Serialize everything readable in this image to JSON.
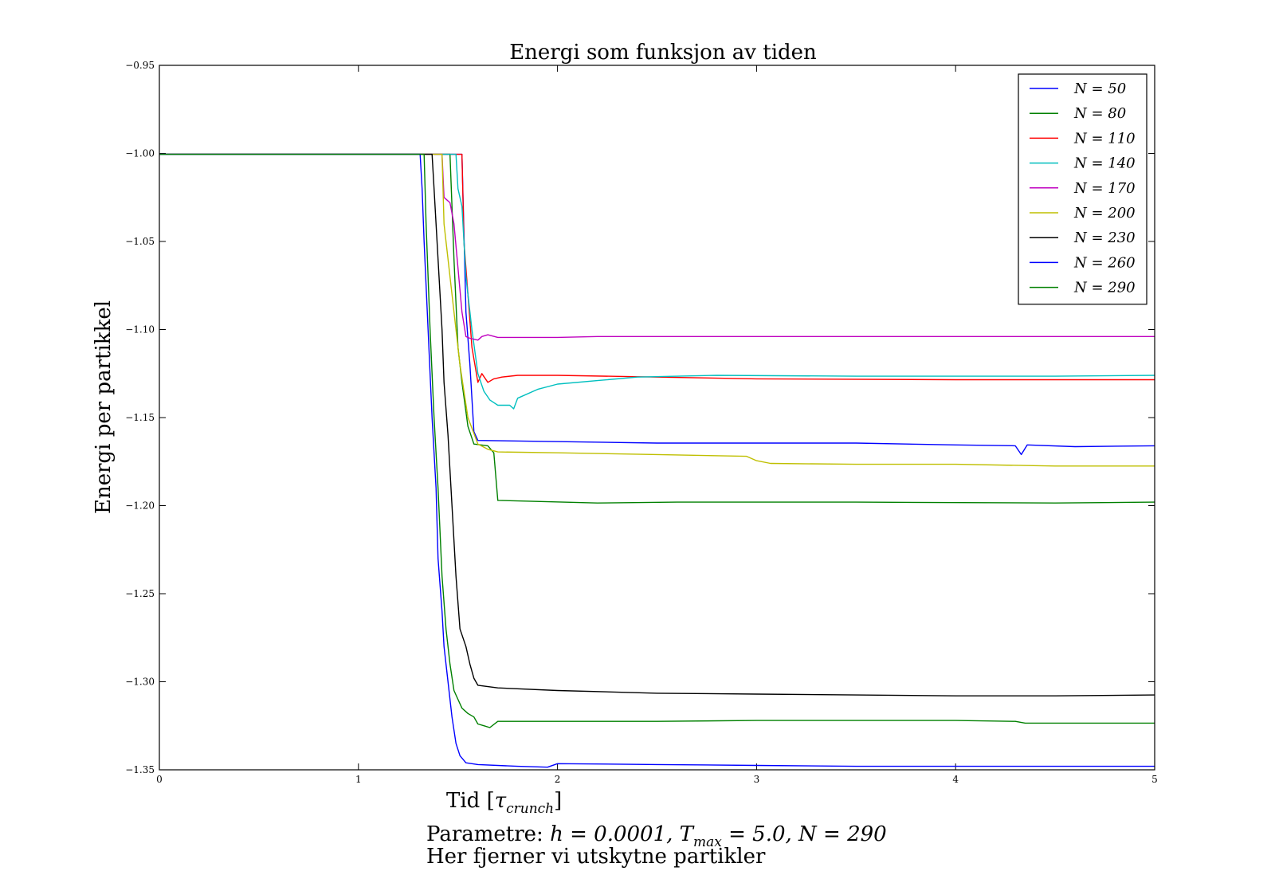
{
  "chart_data": {
    "type": "line",
    "title": "Energi som funksjon av tiden",
    "xlabel": "Tid [τ_crunch]",
    "xlabel_main": "Tid [",
    "xlabel_tau": "τ",
    "xlabel_sub": "crunch",
    "xlabel_close": "]",
    "ylabel": "Energi per partikkel",
    "xlim": [
      0,
      5
    ],
    "ylim": [
      -1.35,
      -0.95
    ],
    "xticks": [
      0,
      1,
      2,
      3,
      4,
      5
    ],
    "xtick_labels": [
      "0",
      "1",
      "2",
      "3",
      "4",
      "5"
    ],
    "yticks": [
      -1.35,
      -1.3,
      -1.25,
      -1.2,
      -1.15,
      -1.1,
      -1.05,
      -1.0,
      -0.95
    ],
    "ytick_labels": [
      "−1.35",
      "−1.30",
      "−1.25",
      "−1.20",
      "−1.15",
      "−1.10",
      "−1.05",
      "−1.00",
      "−0.95"
    ],
    "grid": false,
    "legend_position": "top-right",
    "series": [
      {
        "name": "N = 50",
        "color": "#0000ff",
        "points": [
          [
            0,
            -1.0005
          ],
          [
            1.52,
            -1.0005
          ],
          [
            1.54,
            -1.09
          ],
          [
            1.56,
            -1.12
          ],
          [
            1.58,
            -1.158
          ],
          [
            1.6,
            -1.163
          ],
          [
            2.5,
            -1.1645
          ],
          [
            3.5,
            -1.1645
          ],
          [
            4.0,
            -1.1655
          ],
          [
            4.3,
            -1.166
          ],
          [
            4.33,
            -1.171
          ],
          [
            4.36,
            -1.1655
          ],
          [
            4.6,
            -1.1665
          ],
          [
            5,
            -1.166
          ]
        ]
      },
      {
        "name": "N = 80",
        "color": "#008000",
        "points": [
          [
            0,
            -1.0005
          ],
          [
            1.46,
            -1.0005
          ],
          [
            1.48,
            -1.06
          ],
          [
            1.5,
            -1.11
          ],
          [
            1.52,
            -1.13
          ],
          [
            1.55,
            -1.155
          ],
          [
            1.58,
            -1.165
          ],
          [
            1.65,
            -1.166
          ],
          [
            1.68,
            -1.17
          ],
          [
            1.7,
            -1.197
          ],
          [
            2.2,
            -1.1985
          ],
          [
            2.6,
            -1.198
          ],
          [
            3.5,
            -1.198
          ],
          [
            4.5,
            -1.1985
          ],
          [
            5,
            -1.198
          ]
        ]
      },
      {
        "name": "N = 110",
        "color": "#ff0000",
        "points": [
          [
            0,
            -1.0005
          ],
          [
            1.52,
            -1.0005
          ],
          [
            1.53,
            -1.05
          ],
          [
            1.55,
            -1.08
          ],
          [
            1.57,
            -1.11
          ],
          [
            1.6,
            -1.13
          ],
          [
            1.62,
            -1.125
          ],
          [
            1.65,
            -1.13
          ],
          [
            1.68,
            -1.128
          ],
          [
            1.72,
            -1.127
          ],
          [
            1.8,
            -1.126
          ],
          [
            2.0,
            -1.126
          ],
          [
            2.5,
            -1.127
          ],
          [
            3.0,
            -1.128
          ],
          [
            4.0,
            -1.1285
          ],
          [
            5,
            -1.1285
          ]
        ]
      },
      {
        "name": "N = 140",
        "color": "#00bfbf",
        "points": [
          [
            0,
            -1.0005
          ],
          [
            1.49,
            -1.0005
          ],
          [
            1.5,
            -1.02
          ],
          [
            1.52,
            -1.03
          ],
          [
            1.54,
            -1.07
          ],
          [
            1.57,
            -1.1
          ],
          [
            1.6,
            -1.125
          ],
          [
            1.63,
            -1.135
          ],
          [
            1.66,
            -1.14
          ],
          [
            1.7,
            -1.143
          ],
          [
            1.76,
            -1.143
          ],
          [
            1.78,
            -1.145
          ],
          [
            1.8,
            -1.139
          ],
          [
            1.9,
            -1.134
          ],
          [
            2.0,
            -1.131
          ],
          [
            2.2,
            -1.129
          ],
          [
            2.4,
            -1.127
          ],
          [
            2.8,
            -1.126
          ],
          [
            3.5,
            -1.1265
          ],
          [
            4.5,
            -1.1265
          ],
          [
            5,
            -1.126
          ]
        ]
      },
      {
        "name": "N = 170",
        "color": "#bf00bf",
        "points": [
          [
            0,
            -1.0005
          ],
          [
            1.42,
            -1.0005
          ],
          [
            1.43,
            -1.025
          ],
          [
            1.46,
            -1.028
          ],
          [
            1.48,
            -1.04
          ],
          [
            1.5,
            -1.065
          ],
          [
            1.52,
            -1.09
          ],
          [
            1.54,
            -1.104
          ],
          [
            1.56,
            -1.105
          ],
          [
            1.6,
            -1.106
          ],
          [
            1.62,
            -1.104
          ],
          [
            1.65,
            -1.103
          ],
          [
            1.7,
            -1.1045
          ],
          [
            2.0,
            -1.1045
          ],
          [
            2.2,
            -1.104
          ],
          [
            2.8,
            -1.104
          ],
          [
            3.5,
            -1.104
          ],
          [
            5,
            -1.104
          ]
        ]
      },
      {
        "name": "N = 200",
        "color": "#bfbf00",
        "points": [
          [
            0,
            -1.0005
          ],
          [
            1.42,
            -1.0005
          ],
          [
            1.43,
            -1.04
          ],
          [
            1.45,
            -1.06
          ],
          [
            1.47,
            -1.08
          ],
          [
            1.49,
            -1.1
          ],
          [
            1.51,
            -1.12
          ],
          [
            1.53,
            -1.135
          ],
          [
            1.55,
            -1.15
          ],
          [
            1.6,
            -1.165
          ],
          [
            1.65,
            -1.168
          ],
          [
            1.7,
            -1.1695
          ],
          [
            2.0,
            -1.17
          ],
          [
            2.5,
            -1.171
          ],
          [
            2.95,
            -1.172
          ],
          [
            3.0,
            -1.1745
          ],
          [
            3.07,
            -1.176
          ],
          [
            3.5,
            -1.1765
          ],
          [
            4.0,
            -1.1765
          ],
          [
            4.5,
            -1.1775
          ],
          [
            5,
            -1.1775
          ]
        ]
      },
      {
        "name": "N = 230",
        "color": "#000000",
        "points": [
          [
            0,
            -1.0005
          ],
          [
            1.37,
            -1.0005
          ],
          [
            1.38,
            -1.02
          ],
          [
            1.4,
            -1.06
          ],
          [
            1.42,
            -1.1
          ],
          [
            1.43,
            -1.13
          ],
          [
            1.45,
            -1.16
          ],
          [
            1.47,
            -1.2
          ],
          [
            1.49,
            -1.24
          ],
          [
            1.51,
            -1.27
          ],
          [
            1.54,
            -1.28
          ],
          [
            1.56,
            -1.29
          ],
          [
            1.58,
            -1.298
          ],
          [
            1.6,
            -1.302
          ],
          [
            1.7,
            -1.3035
          ],
          [
            2.0,
            -1.305
          ],
          [
            2.5,
            -1.3065
          ],
          [
            3.0,
            -1.307
          ],
          [
            3.5,
            -1.3075
          ],
          [
            4.0,
            -1.308
          ],
          [
            4.5,
            -1.308
          ],
          [
            5,
            -1.3075
          ]
        ]
      },
      {
        "name": "N = 260",
        "color": "#0000ff",
        "points": [
          [
            0,
            -1.0005
          ],
          [
            1.31,
            -1.0005
          ],
          [
            1.32,
            -1.02
          ],
          [
            1.33,
            -1.05
          ],
          [
            1.35,
            -1.1
          ],
          [
            1.37,
            -1.15
          ],
          [
            1.39,
            -1.19
          ],
          [
            1.4,
            -1.23
          ],
          [
            1.42,
            -1.26
          ],
          [
            1.43,
            -1.28
          ],
          [
            1.45,
            -1.3
          ],
          [
            1.47,
            -1.32
          ],
          [
            1.49,
            -1.335
          ],
          [
            1.51,
            -1.342
          ],
          [
            1.54,
            -1.346
          ],
          [
            1.6,
            -1.347
          ],
          [
            1.8,
            -1.348
          ],
          [
            1.95,
            -1.3485
          ],
          [
            2.0,
            -1.3465
          ],
          [
            2.5,
            -1.347
          ],
          [
            3.0,
            -1.3475
          ],
          [
            3.5,
            -1.348
          ],
          [
            4.0,
            -1.348
          ],
          [
            4.5,
            -1.348
          ],
          [
            5,
            -1.348
          ]
        ]
      },
      {
        "name": "N = 290",
        "color": "#008000",
        "points": [
          [
            0,
            -1.0005
          ],
          [
            1.33,
            -1.0005
          ],
          [
            1.34,
            -1.04
          ],
          [
            1.36,
            -1.1
          ],
          [
            1.38,
            -1.15
          ],
          [
            1.4,
            -1.19
          ],
          [
            1.42,
            -1.24
          ],
          [
            1.44,
            -1.27
          ],
          [
            1.46,
            -1.29
          ],
          [
            1.48,
            -1.305
          ],
          [
            1.5,
            -1.31
          ],
          [
            1.52,
            -1.315
          ],
          [
            1.55,
            -1.318
          ],
          [
            1.58,
            -1.32
          ],
          [
            1.6,
            -1.324
          ],
          [
            1.63,
            -1.325
          ],
          [
            1.66,
            -1.326
          ],
          [
            1.7,
            -1.3225
          ],
          [
            2.0,
            -1.3225
          ],
          [
            2.5,
            -1.3225
          ],
          [
            3.0,
            -1.322
          ],
          [
            3.5,
            -1.322
          ],
          [
            4.0,
            -1.322
          ],
          [
            4.3,
            -1.3225
          ],
          [
            4.35,
            -1.3235
          ],
          [
            5,
            -1.3235
          ]
        ]
      }
    ]
  },
  "caption": {
    "line1_prefix": "Parametre: ",
    "line1_params": "h = 0.0001, T",
    "line1_sub": "max",
    "line1_rest": " = 5.0, N = 290",
    "line2": "Her fjerner vi utskytne partikler"
  }
}
